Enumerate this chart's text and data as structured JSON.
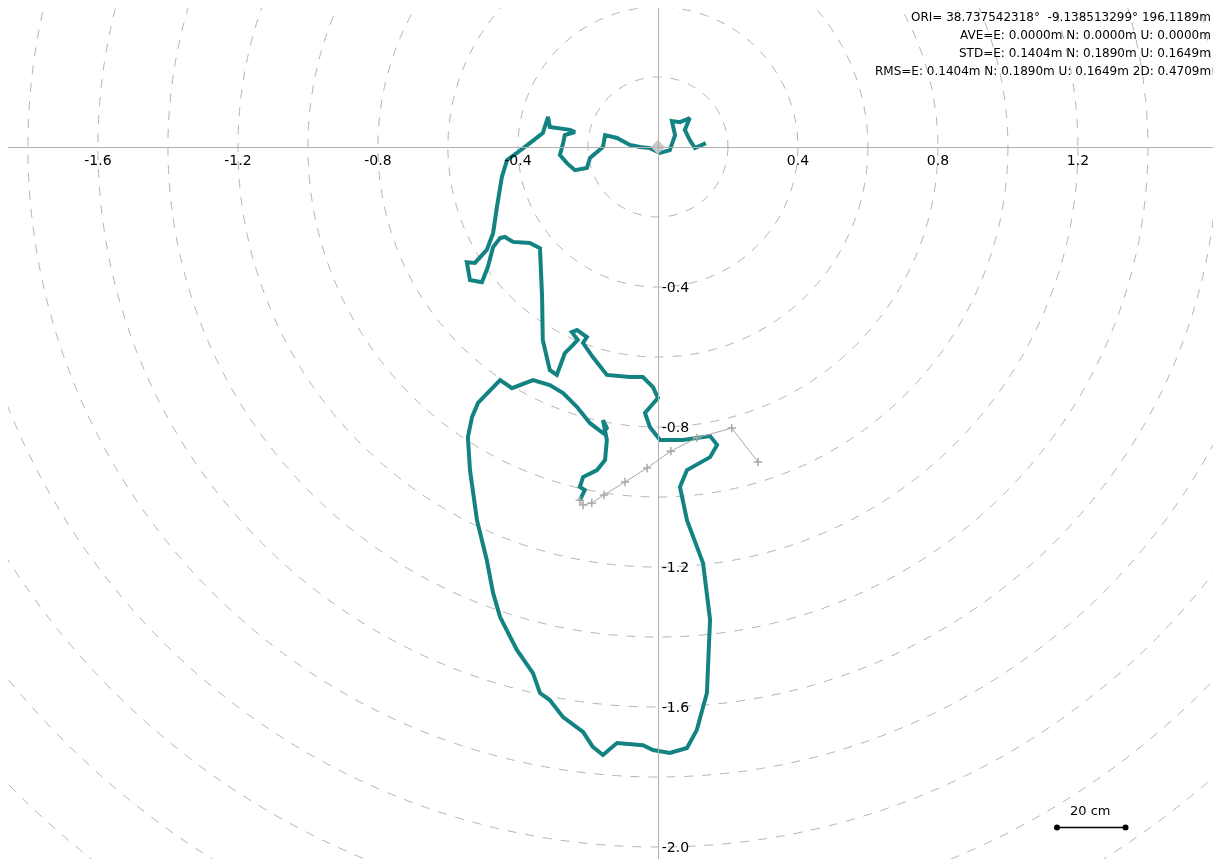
{
  "chart_data": {
    "type": "line",
    "series": [
      {
        "color": "#138282",
        "x": [
          0.137,
          0.106,
          0.091,
          0.077,
          0.091,
          0.063,
          0.04,
          0.049,
          0.034,
          0.006,
          -0.023,
          -0.051,
          -0.08,
          -0.117,
          -0.151,
          -0.157,
          -0.194,
          -0.203,
          -0.237,
          -0.26,
          -0.28,
          -0.271,
          -0.266,
          -0.237,
          -0.251,
          -0.309,
          -0.314,
          -0.329,
          -0.366,
          -0.403,
          -0.431,
          -0.446,
          -0.46,
          -0.471,
          -0.489,
          -0.523,
          -0.546,
          -0.537,
          -0.503,
          -0.486,
          -0.471,
          -0.451,
          -0.437,
          -0.414,
          -0.366,
          -0.337,
          -0.331,
          -0.329,
          -0.309,
          -0.289,
          -0.266,
          -0.243,
          -0.229,
          -0.246,
          -0.231,
          -0.203,
          -0.214,
          -0.186,
          -0.146,
          -0.08,
          -0.043,
          -0.014,
          0,
          -0.037,
          -0.023,
          0.006,
          0.071,
          0.149,
          0.169,
          0.149,
          0.083,
          0.063,
          0.083,
          0.129,
          0.149,
          0.146,
          0.14,
          0.111,
          0.083,
          0.034,
          -0.014,
          -0.043,
          -0.117,
          -0.157,
          -0.186,
          -0.214,
          -0.271,
          -0.309,
          -0.337,
          -0.357,
          -0.403,
          -0.451,
          -0.471,
          -0.489,
          -0.517,
          -0.537,
          -0.543,
          -0.531,
          -0.514,
          -0.451,
          -0.417,
          -0.357,
          -0.309,
          -0.271,
          -0.231,
          -0.194,
          -0.157,
          -0.146,
          -0.157,
          -0.146,
          -0.151,
          -0.174,
          -0.214,
          -0.223,
          -0.209,
          -0.223
        ],
        "values": [
          0.011,
          -0.003,
          0.02,
          0.049,
          0.083,
          0.071,
          0.074,
          0.034,
          -0.009,
          -0.017,
          -0.003,
          0,
          0.006,
          0.026,
          0.034,
          0,
          -0.031,
          -0.06,
          -0.066,
          -0.046,
          -0.023,
          0.011,
          0.034,
          0.043,
          0.049,
          0.057,
          0.086,
          0.04,
          0.011,
          -0.017,
          -0.037,
          -0.086,
          -0.171,
          -0.246,
          -0.294,
          -0.331,
          -0.329,
          -0.38,
          -0.386,
          -0.343,
          -0.286,
          -0.26,
          -0.257,
          -0.271,
          -0.274,
          -0.289,
          -0.429,
          -0.551,
          -0.637,
          -0.651,
          -0.589,
          -0.566,
          -0.551,
          -0.529,
          -0.523,
          -0.543,
          -0.56,
          -0.6,
          -0.651,
          -0.657,
          -0.657,
          -0.686,
          -0.717,
          -0.76,
          -0.8,
          -0.837,
          -0.837,
          -0.826,
          -0.851,
          -0.886,
          -0.923,
          -0.971,
          -1.066,
          -1.189,
          -1.351,
          -1.417,
          -1.56,
          -1.666,
          -1.717,
          -1.731,
          -1.723,
          -1.709,
          -1.703,
          -1.737,
          -1.714,
          -1.671,
          -1.629,
          -1.58,
          -1.56,
          -1.503,
          -1.437,
          -1.343,
          -1.274,
          -1.18,
          -1.066,
          -0.923,
          -0.829,
          -0.771,
          -0.731,
          -0.666,
          -0.689,
          -0.666,
          -0.68,
          -0.703,
          -0.743,
          -0.789,
          -0.817,
          -0.803,
          -0.78,
          -0.837,
          -0.894,
          -0.923,
          -0.943,
          -0.971,
          -0.98,
          -1.009
        ]
      },
      {
        "color": "#a8a8a8",
        "marker": "cross",
        "x": [
          -0.223,
          -0.214,
          -0.189,
          -0.154,
          -0.094,
          -0.031,
          0.037,
          0.111,
          0.211,
          0.286
        ],
        "values": [
          -1.009,
          -1.023,
          -1.017,
          -0.994,
          -0.957,
          -0.917,
          -0.869,
          -0.831,
          -0.803,
          -0.9
        ]
      },
      {
        "type": "scatter",
        "color": "#c8c8c8",
        "marker": "diamond",
        "x": [
          0
        ],
        "values": [
          0
        ]
      }
    ],
    "xlim": [
      -1.857,
      1.586
    ],
    "ylim": [
      -2.034,
      0.397
    ],
    "xticks": [
      -1.6,
      -1.2,
      -0.8,
      -0.4,
      0.4,
      0.8,
      1.2
    ],
    "yticks": [
      -0.4,
      -0.8,
      -1.2,
      -1.6,
      {
        "value": -2.0,
        "label": "-2.0"
      }
    ],
    "annotations": [
      "ORI= 38.737542318°  -9.138513299° 196.1189m",
      "AVE=E: 0.0000m N: 0.0000m U: 0.0000m",
      "STD=E: 0.1404m N: 0.1890m U: 0.1649m",
      "RMS=E: 0.1404m N: 0.1890m U: 0.1649m 2D: 0.4709m",
      "20 cm"
    ]
  }
}
